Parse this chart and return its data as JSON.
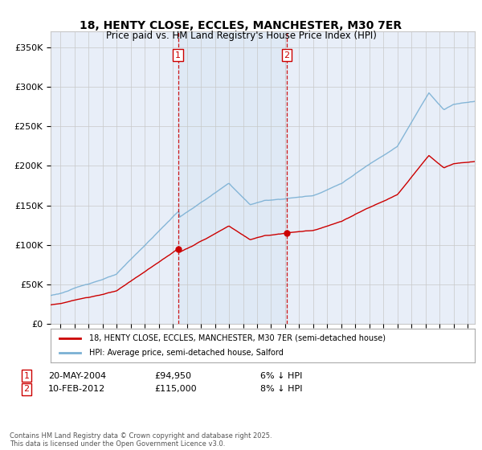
{
  "title": "18, HENTY CLOSE, ECCLES, MANCHESTER, M30 7ER",
  "subtitle": "Price paid vs. HM Land Registry's House Price Index (HPI)",
  "ylabel_ticks": [
    "£0",
    "£50K",
    "£100K",
    "£150K",
    "£200K",
    "£250K",
    "£300K",
    "£350K"
  ],
  "ytick_values": [
    0,
    50000,
    100000,
    150000,
    200000,
    250000,
    300000,
    350000
  ],
  "ylim": [
    0,
    370000
  ],
  "xlim_start": 1995.3,
  "xlim_end": 2025.5,
  "sale1_x": 2004.38,
  "sale1_y": 94950,
  "sale1_label": "1",
  "sale1_date": "20-MAY-2004",
  "sale1_price": "£94,950",
  "sale1_pct": "6% ↓ HPI",
  "sale2_x": 2012.12,
  "sale2_y": 115000,
  "sale2_label": "2",
  "sale2_date": "10-FEB-2012",
  "sale2_price": "£115,000",
  "sale2_pct": "8% ↓ HPI",
  "legend_line1": "18, HENTY CLOSE, ECCLES, MANCHESTER, M30 7ER (semi-detached house)",
  "legend_line2": "HPI: Average price, semi-detached house, Salford",
  "footer": "Contains HM Land Registry data © Crown copyright and database right 2025.\nThis data is licensed under the Open Government Licence v3.0.",
  "line_color": "#cc0000",
  "hpi_color": "#7ab0d4",
  "vline_color": "#cc0000",
  "shade_color": "#dce8f5",
  "background_color": "#e8eef8",
  "plot_bg": "#ffffff",
  "grid_color": "#c8c8c8"
}
